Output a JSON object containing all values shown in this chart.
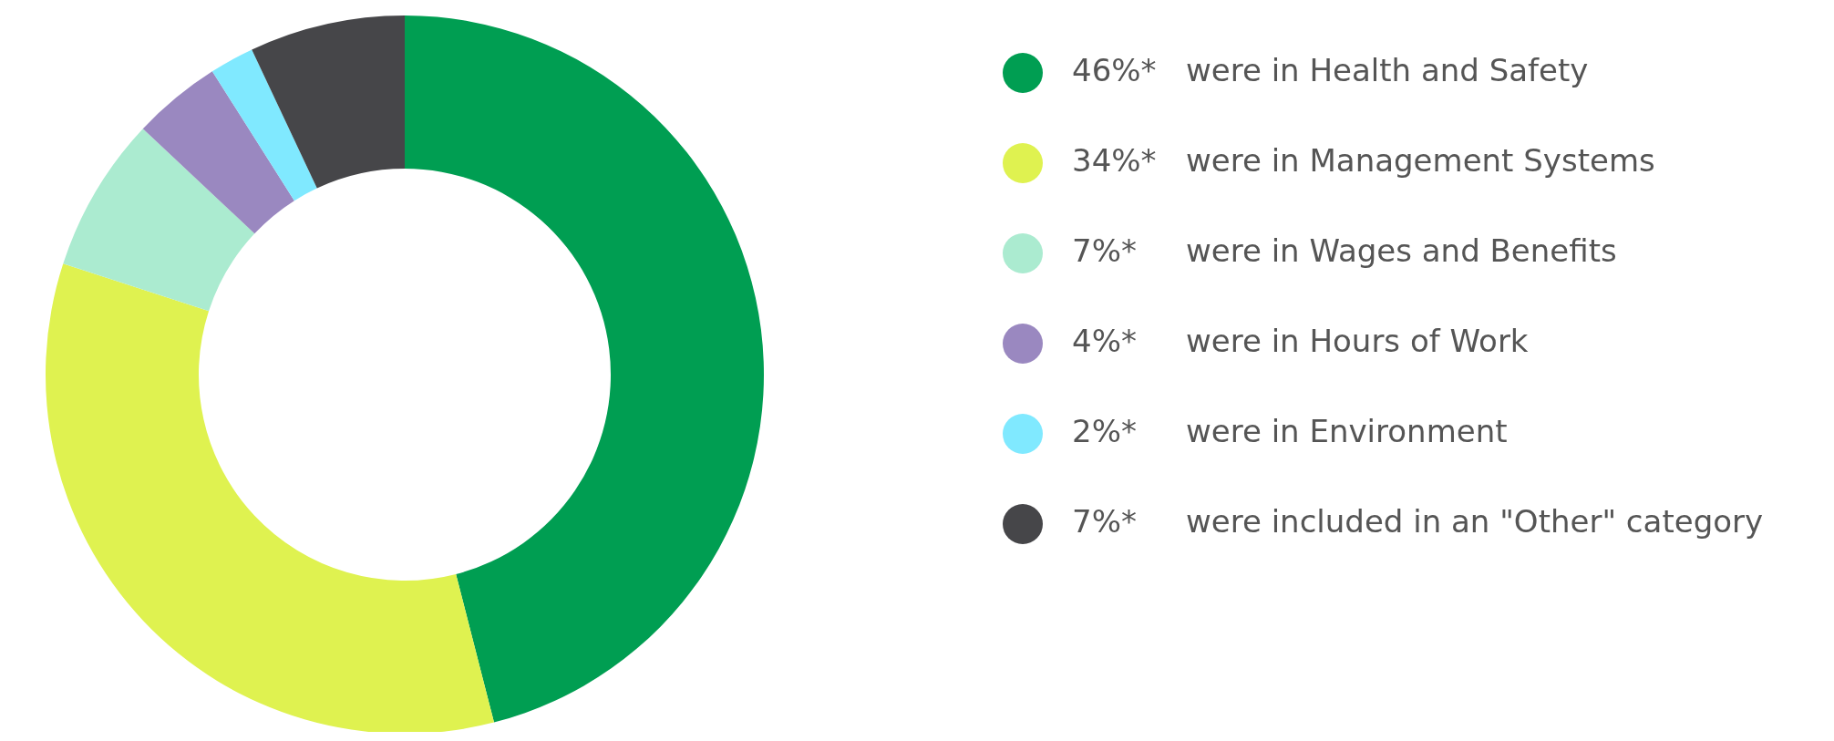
{
  "chart_data": {
    "type": "donut",
    "categories": [
      "were in Health and Safety",
      "were in Management Systems",
      "were in Wages and Benefits",
      "were in Hours of Work",
      "were in Environment",
      "were included in an \"Other\" category"
    ],
    "values": [
      46,
      34,
      7,
      4,
      2,
      7
    ],
    "value_labels": [
      "46%*",
      "34%*",
      "7%*",
      "4%*",
      "2%*",
      "7%*"
    ],
    "colors": [
      "#009e52",
      "#dff250",
      "#abebd0",
      "#9a88c0",
      "#80e9ff",
      "#464649"
    ],
    "legend": "right"
  }
}
